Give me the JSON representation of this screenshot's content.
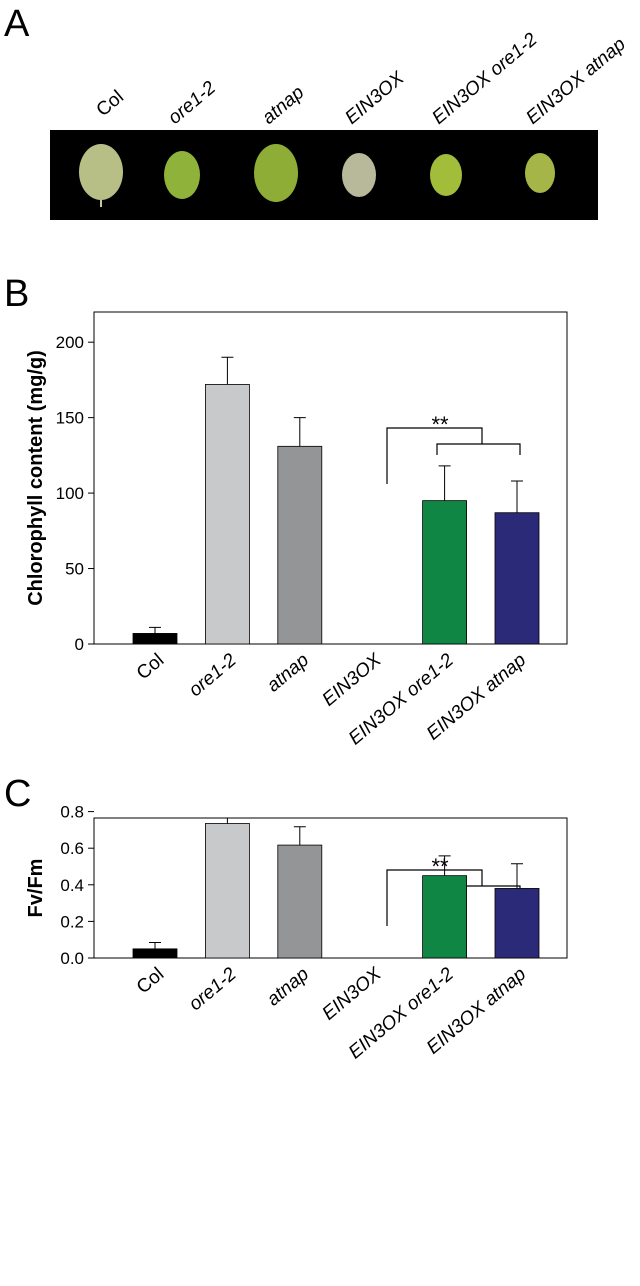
{
  "panel_labels": [
    "A",
    "B",
    "C"
  ],
  "leaf_image": {
    "labels": [
      "Col",
      "ore1-2",
      "atnap",
      "EIN3OX",
      "EIN3OX ore1-2",
      "EIN3OX atnap"
    ]
  },
  "chart_data": [
    {
      "type": "bar",
      "y_label": "Chlorophyll content (mg/g)",
      "categories": [
        "Col",
        "ore1-2",
        "atnap",
        "EIN3OX",
        "EIN3OX ore1-2",
        "EIN3OX atnap"
      ],
      "values": [
        7,
        172,
        131,
        null,
        95,
        87
      ],
      "errors": [
        4,
        18,
        19,
        null,
        23,
        21
      ],
      "colors": [
        "#000000",
        "#c8c9cb",
        "#949597",
        "#949597",
        "#0f8643",
        "#2b2a78"
      ],
      "ylim": [
        0,
        220
      ],
      "yticks": [
        0,
        50,
        100,
        150,
        200
      ],
      "annotation": "**"
    },
    {
      "type": "bar",
      "y_label": "Fv/Fm",
      "categories": [
        "Col",
        "ore1-2",
        "atnap",
        "EIN3OX",
        "EIN3OX ore1-2",
        "EIN3OX atnap"
      ],
      "values": [
        0.05,
        0.735,
        0.617,
        null,
        0.45,
        0.38
      ],
      "errors": [
        0.035,
        0.03,
        0.1,
        null,
        0.108,
        0.135
      ],
      "colors": [
        "#000000",
        "#c8c9cb",
        "#949597",
        "#949597",
        "#0f8643",
        "#2b2a78"
      ],
      "ylim": [
        0,
        0.765
      ],
      "yticks": [
        {
          "value": 0,
          "label": "0.0"
        },
        {
          "value": 0.2,
          "label": "0.2"
        },
        {
          "value": 0.4,
          "label": "0.4"
        },
        {
          "value": 0.6,
          "label": "0.6"
        },
        {
          "value": 0.8,
          "label": "0.8"
        }
      ],
      "annotation": "**"
    }
  ]
}
